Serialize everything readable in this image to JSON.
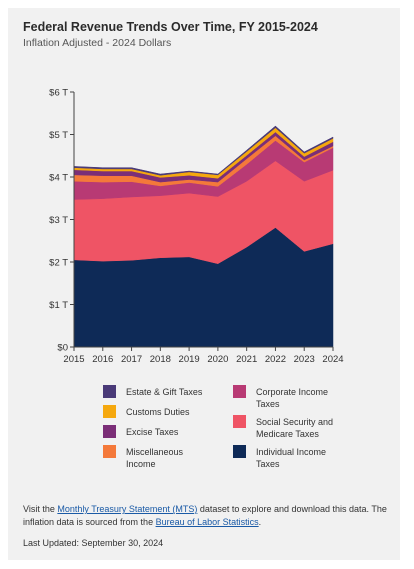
{
  "header": {
    "title": "Federal Revenue Trends Over Time, FY 2015-2024",
    "subtitle": "Inflation Adjusted - 2024 Dollars"
  },
  "chart_data": {
    "type": "area",
    "stacked": true,
    "x": [
      "2015",
      "2016",
      "2017",
      "2018",
      "2019",
      "2020",
      "2021",
      "2022",
      "2023",
      "2024"
    ],
    "ylim": [
      0,
      6
    ],
    "yticks": [
      "$0",
      "$1 T",
      "$2 T",
      "$3 T",
      "$4 T",
      "$5 T",
      "$6 T"
    ],
    "grid": false,
    "legend_position": "bottom",
    "series": [
      {
        "name": "Individual Income Taxes",
        "color": "#0e2a57",
        "values": [
          2.05,
          2.02,
          2.04,
          2.1,
          2.12,
          1.96,
          2.35,
          2.81,
          2.25,
          2.43
        ]
      },
      {
        "name": "Social Security and Medicare Taxes",
        "color": "#ef5465",
        "values": [
          1.42,
          1.47,
          1.49,
          1.46,
          1.5,
          1.58,
          1.55,
          1.57,
          1.65,
          1.73
        ]
      },
      {
        "name": "Corporate Income Taxes",
        "color": "#b83a74",
        "values": [
          0.43,
          0.39,
          0.36,
          0.23,
          0.25,
          0.24,
          0.4,
          0.48,
          0.45,
          0.53
        ]
      },
      {
        "name": "Miscellaneous Income",
        "color": "#f4793a",
        "values": [
          0.15,
          0.15,
          0.14,
          0.09,
          0.07,
          0.1,
          0.13,
          0.11,
          0.05,
          0.04
        ]
      },
      {
        "name": "Excise Taxes",
        "color": "#7b2e77",
        "values": [
          0.12,
          0.11,
          0.11,
          0.11,
          0.1,
          0.09,
          0.08,
          0.09,
          0.08,
          0.1
        ]
      },
      {
        "name": "Customs Duties",
        "color": "#f5a80e",
        "values": [
          0.05,
          0.05,
          0.05,
          0.05,
          0.08,
          0.08,
          0.09,
          0.1,
          0.08,
          0.08
        ]
      },
      {
        "name": "Estate & Gift Taxes",
        "color": "#4a3a78",
        "values": [
          0.03,
          0.03,
          0.03,
          0.03,
          0.02,
          0.02,
          0.03,
          0.04,
          0.03,
          0.03
        ]
      }
    ]
  },
  "legend": {
    "left": [
      {
        "label": "Estate & Gift Taxes",
        "color": "#4a3a78"
      },
      {
        "label": "Customs Duties",
        "color": "#f5a80e"
      },
      {
        "label": "Excise Taxes",
        "color": "#7b2e77"
      },
      {
        "label": "Miscellaneous Income",
        "color": "#f4793a"
      }
    ],
    "right": [
      {
        "label": "Corporate Income Taxes",
        "color": "#b83a74"
      },
      {
        "label": "Social Security and Medicare Taxes",
        "color": "#ef5465"
      },
      {
        "label": "Individual Income Taxes",
        "color": "#0e2a57"
      }
    ]
  },
  "footer": {
    "text_1": "Visit the ",
    "link_1": "Monthly Treasury Statement (MTS)",
    "text_2": " dataset to explore and download this data. The inflation data is sourced from the ",
    "link_2": "Bureau of Labor Statistics",
    "text_3": ".",
    "updated": "Last Updated: September 30, 2024"
  }
}
